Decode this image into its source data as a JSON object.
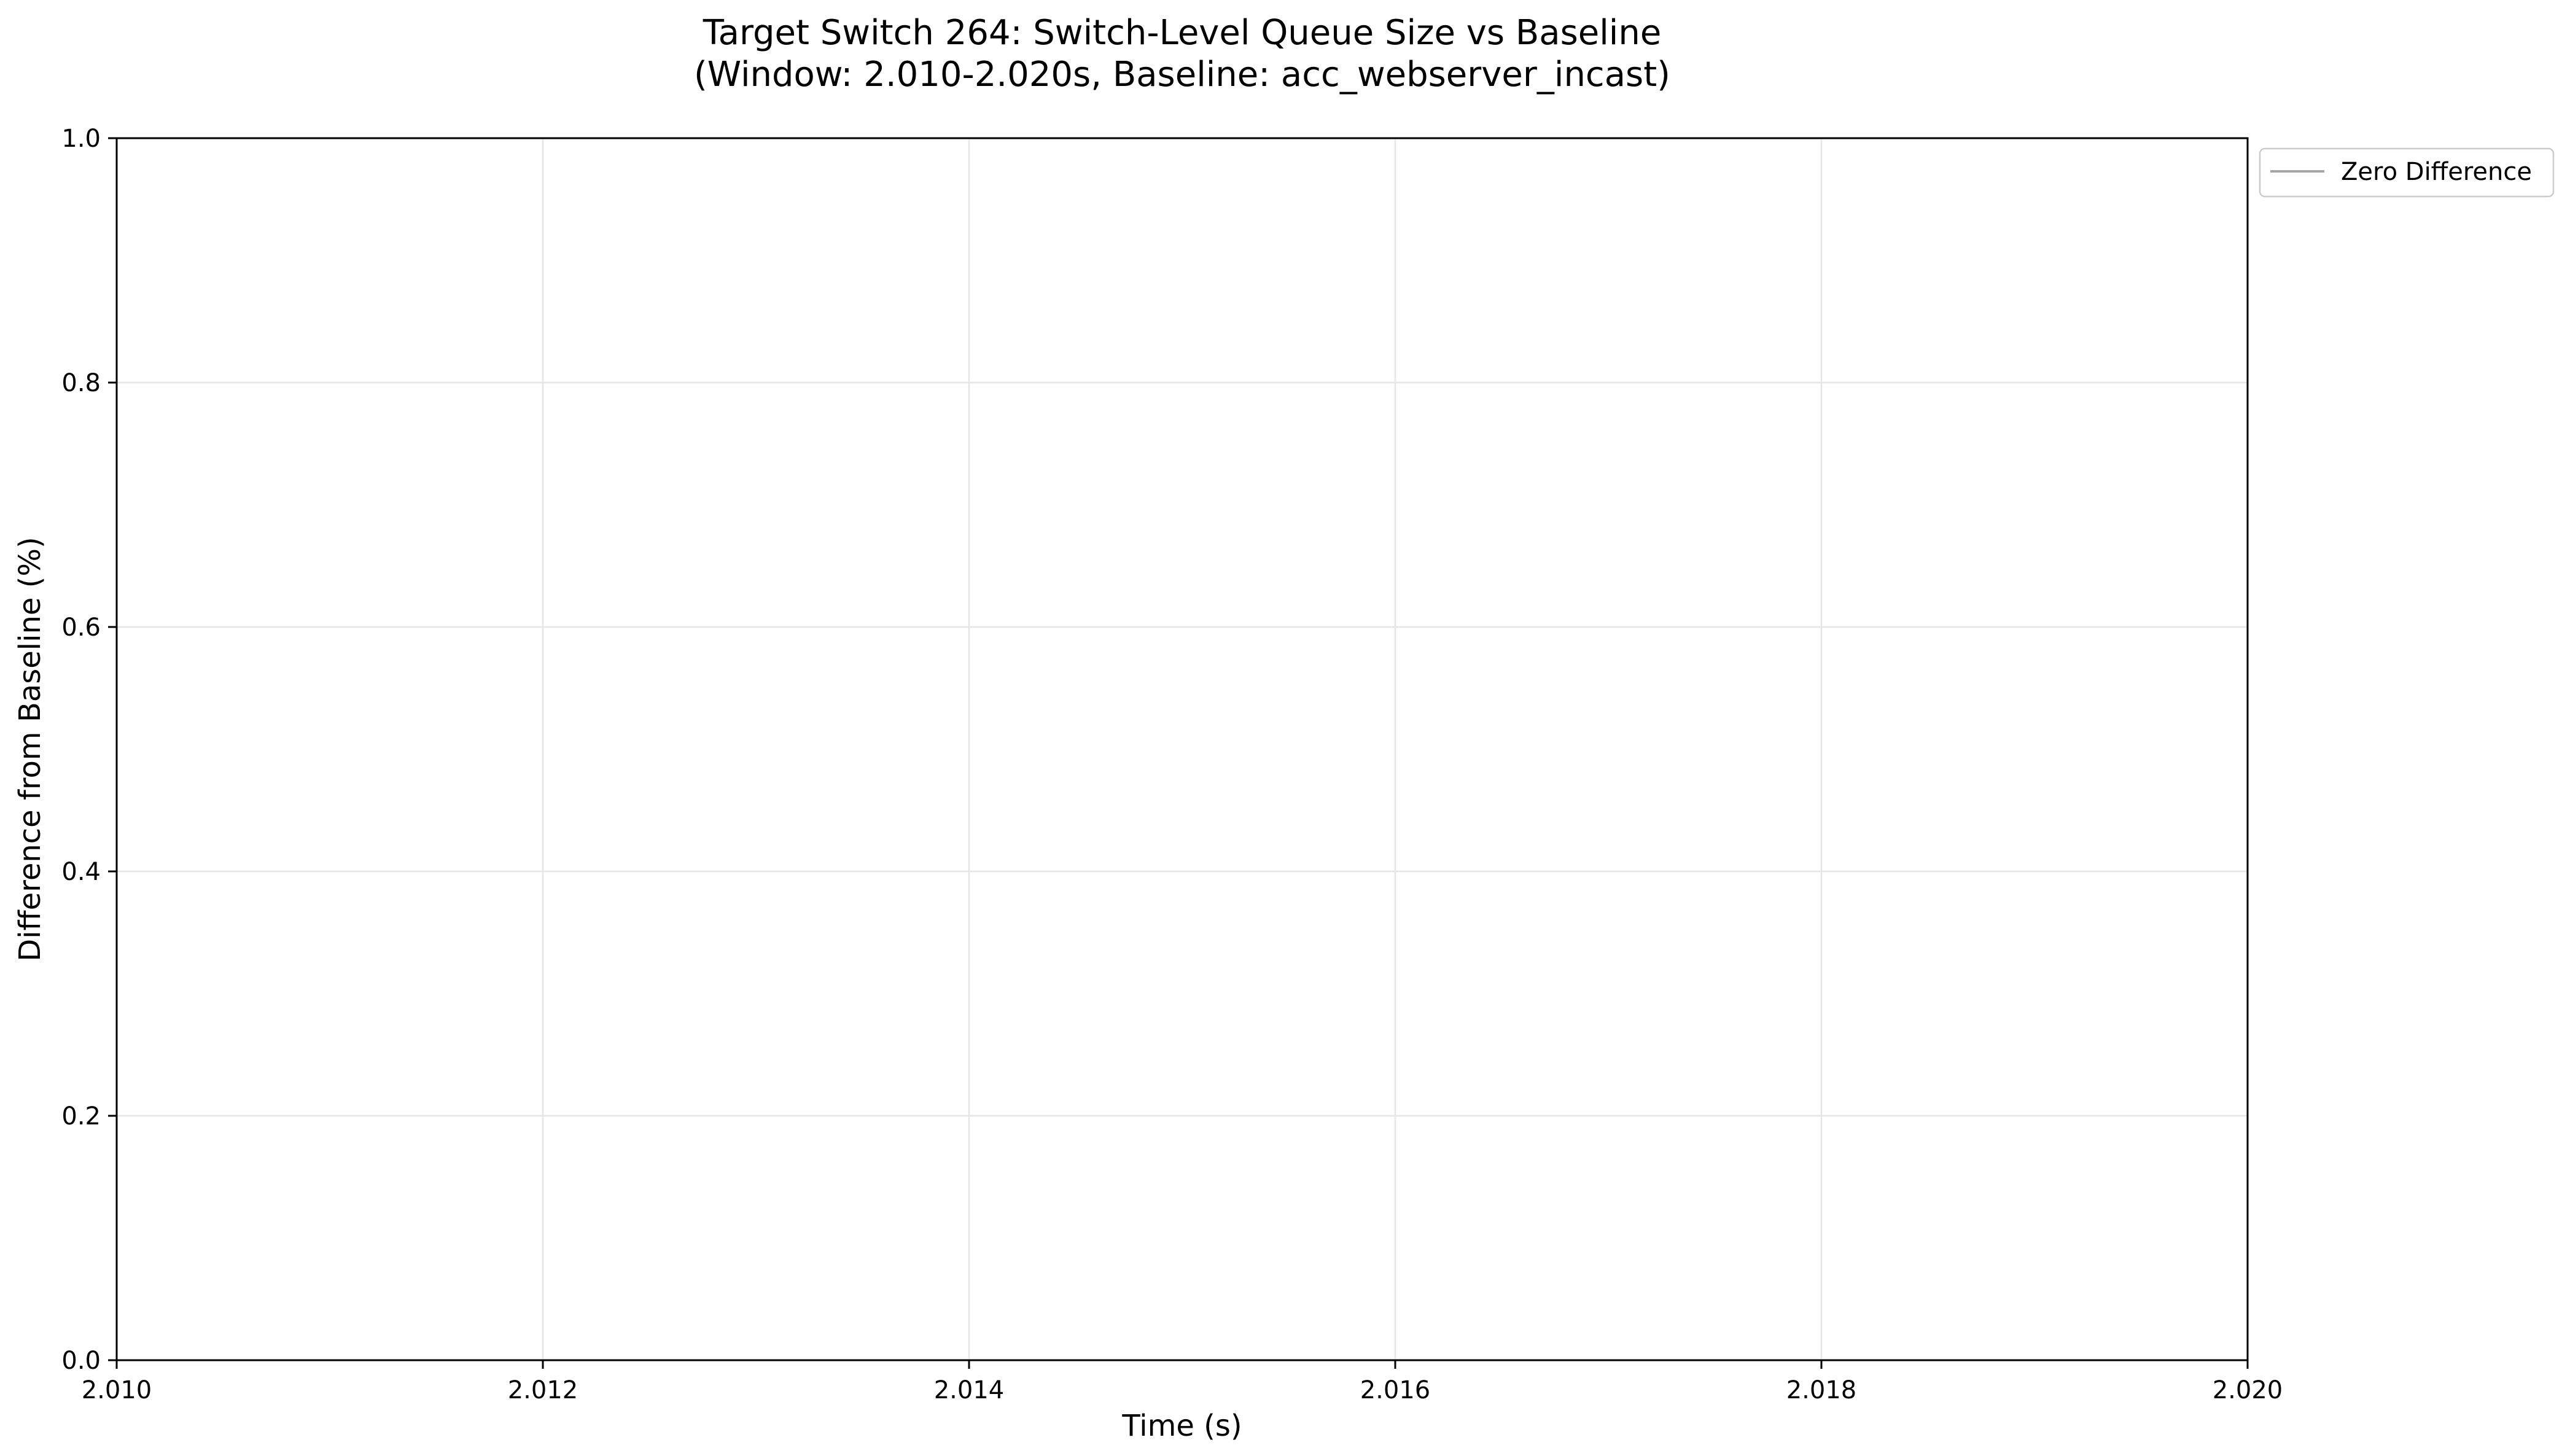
{
  "chart_data": {
    "type": "line",
    "title": "Target Switch 264: Switch-Level Queue Size vs Baseline",
    "subtitle": "(Window: 2.010-2.020s, Baseline: acc_webserver_incast)",
    "xlabel": "Time (s)",
    "ylabel": "Difference from Baseline (%)",
    "xlim": [
      2.01,
      2.02
    ],
    "ylim": [
      0.0,
      1.0
    ],
    "x_ticks": [
      2.01,
      2.012,
      2.014,
      2.016,
      2.018,
      2.02
    ],
    "x_tick_labels": [
      "2.010",
      "2.012",
      "2.014",
      "2.016",
      "2.018",
      "2.020"
    ],
    "y_ticks": [
      0.0,
      0.2,
      0.4,
      0.6,
      0.8,
      1.0
    ],
    "y_tick_labels": [
      "0.0",
      "0.2",
      "0.4",
      "0.6",
      "0.8",
      "1.0"
    ],
    "grid": true,
    "legend_position": "outside-top-right",
    "series": [
      {
        "name": "Zero Difference",
        "color": "#a6a6a6",
        "x": [],
        "y": []
      }
    ]
  }
}
